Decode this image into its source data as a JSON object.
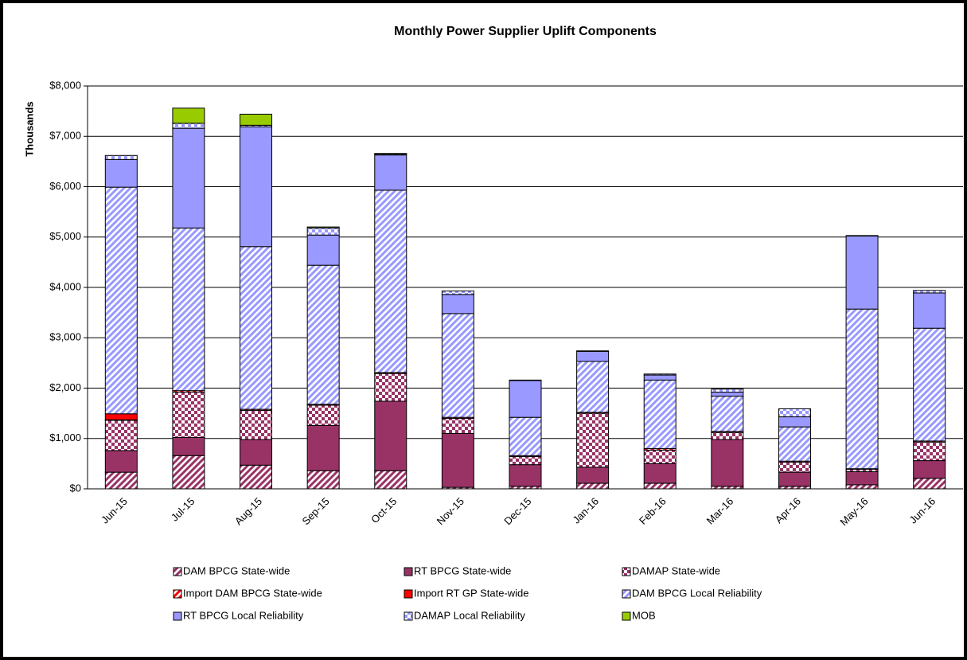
{
  "chart_data": {
    "type": "stacked_bar",
    "title": "Monthly Power Supplier Uplift Components",
    "y_label": "Thousands",
    "categories": [
      "Jun-15",
      "Jul-15",
      "Aug-15",
      "Sep-15",
      "Oct-15",
      "Nov-15",
      "Dec-15",
      "Jan-16",
      "Feb-16",
      "Mar-16",
      "Apr-16",
      "May-16",
      "Jun-16"
    ],
    "series": [
      {
        "name": "DAM BPCG State-wide",
        "color": "#993366",
        "pattern": "stripes",
        "values": [
          330,
          660,
          470,
          360,
          360,
          30,
          50,
          110,
          110,
          50,
          50,
          80,
          210
        ]
      },
      {
        "name": "RT BPCG State-wide",
        "color": "#993366",
        "pattern": "solid",
        "values": [
          430,
          360,
          510,
          900,
          1380,
          1070,
          430,
          320,
          390,
          930,
          280,
          260,
          350
        ]
      },
      {
        "name": "DAMAP State-wide",
        "color": "#993366",
        "pattern": "checker",
        "values": [
          600,
          900,
          580,
          400,
          550,
          300,
          160,
          1070,
          270,
          140,
          200,
          50,
          370
        ]
      },
      {
        "name": "Import DAM BPCG State-wide",
        "color": "#ff0000",
        "pattern": "stripes",
        "values": [
          10,
          30,
          20,
          20,
          20,
          20,
          20,
          20,
          30,
          20,
          20,
          10,
          20
        ]
      },
      {
        "name": "Import RT GP State-wide",
        "color": "#ff0000",
        "pattern": "solid",
        "values": [
          120,
          0,
          0,
          0,
          0,
          0,
          0,
          0,
          0,
          0,
          0,
          0,
          0
        ]
      },
      {
        "name": "DAM BPCG Local Reliability",
        "color": "#9999ff",
        "pattern": "stripes",
        "values": [
          4500,
          3230,
          3230,
          2760,
          3620,
          2060,
          760,
          1010,
          1360,
          700,
          680,
          3170,
          2240
        ]
      },
      {
        "name": "RT BPCG Local Reliability",
        "color": "#9999ff",
        "pattern": "solid",
        "values": [
          550,
          1980,
          2380,
          600,
          700,
          380,
          730,
          200,
          100,
          80,
          200,
          1450,
          700
        ]
      },
      {
        "name": "DAMAP Local Reliability",
        "color": "#9999ff",
        "pattern": "checker",
        "values": [
          80,
          100,
          30,
          140,
          20,
          70,
          10,
          10,
          20,
          60,
          160,
          10,
          50
        ]
      },
      {
        "name": "MOB",
        "color": "#99cc00",
        "pattern": "solid",
        "values": [
          0,
          300,
          220,
          20,
          10,
          0,
          0,
          0,
          0,
          0,
          0,
          0,
          0
        ]
      }
    ],
    "ylim": [
      0,
      8000
    ],
    "yticks": [
      {
        "value": 0,
        "label": "$0"
      },
      {
        "value": 1000,
        "label": "$1,000"
      },
      {
        "value": 2000,
        "label": "$2,000"
      },
      {
        "value": 3000,
        "label": "$3,000"
      },
      {
        "value": 4000,
        "label": "$4,000"
      },
      {
        "value": 5000,
        "label": "$5,000"
      },
      {
        "value": 6000,
        "label": "$6,000"
      },
      {
        "value": 7000,
        "label": "$7,000"
      },
      {
        "value": 8000,
        "label": "$8,000"
      }
    ],
    "grid": true
  }
}
